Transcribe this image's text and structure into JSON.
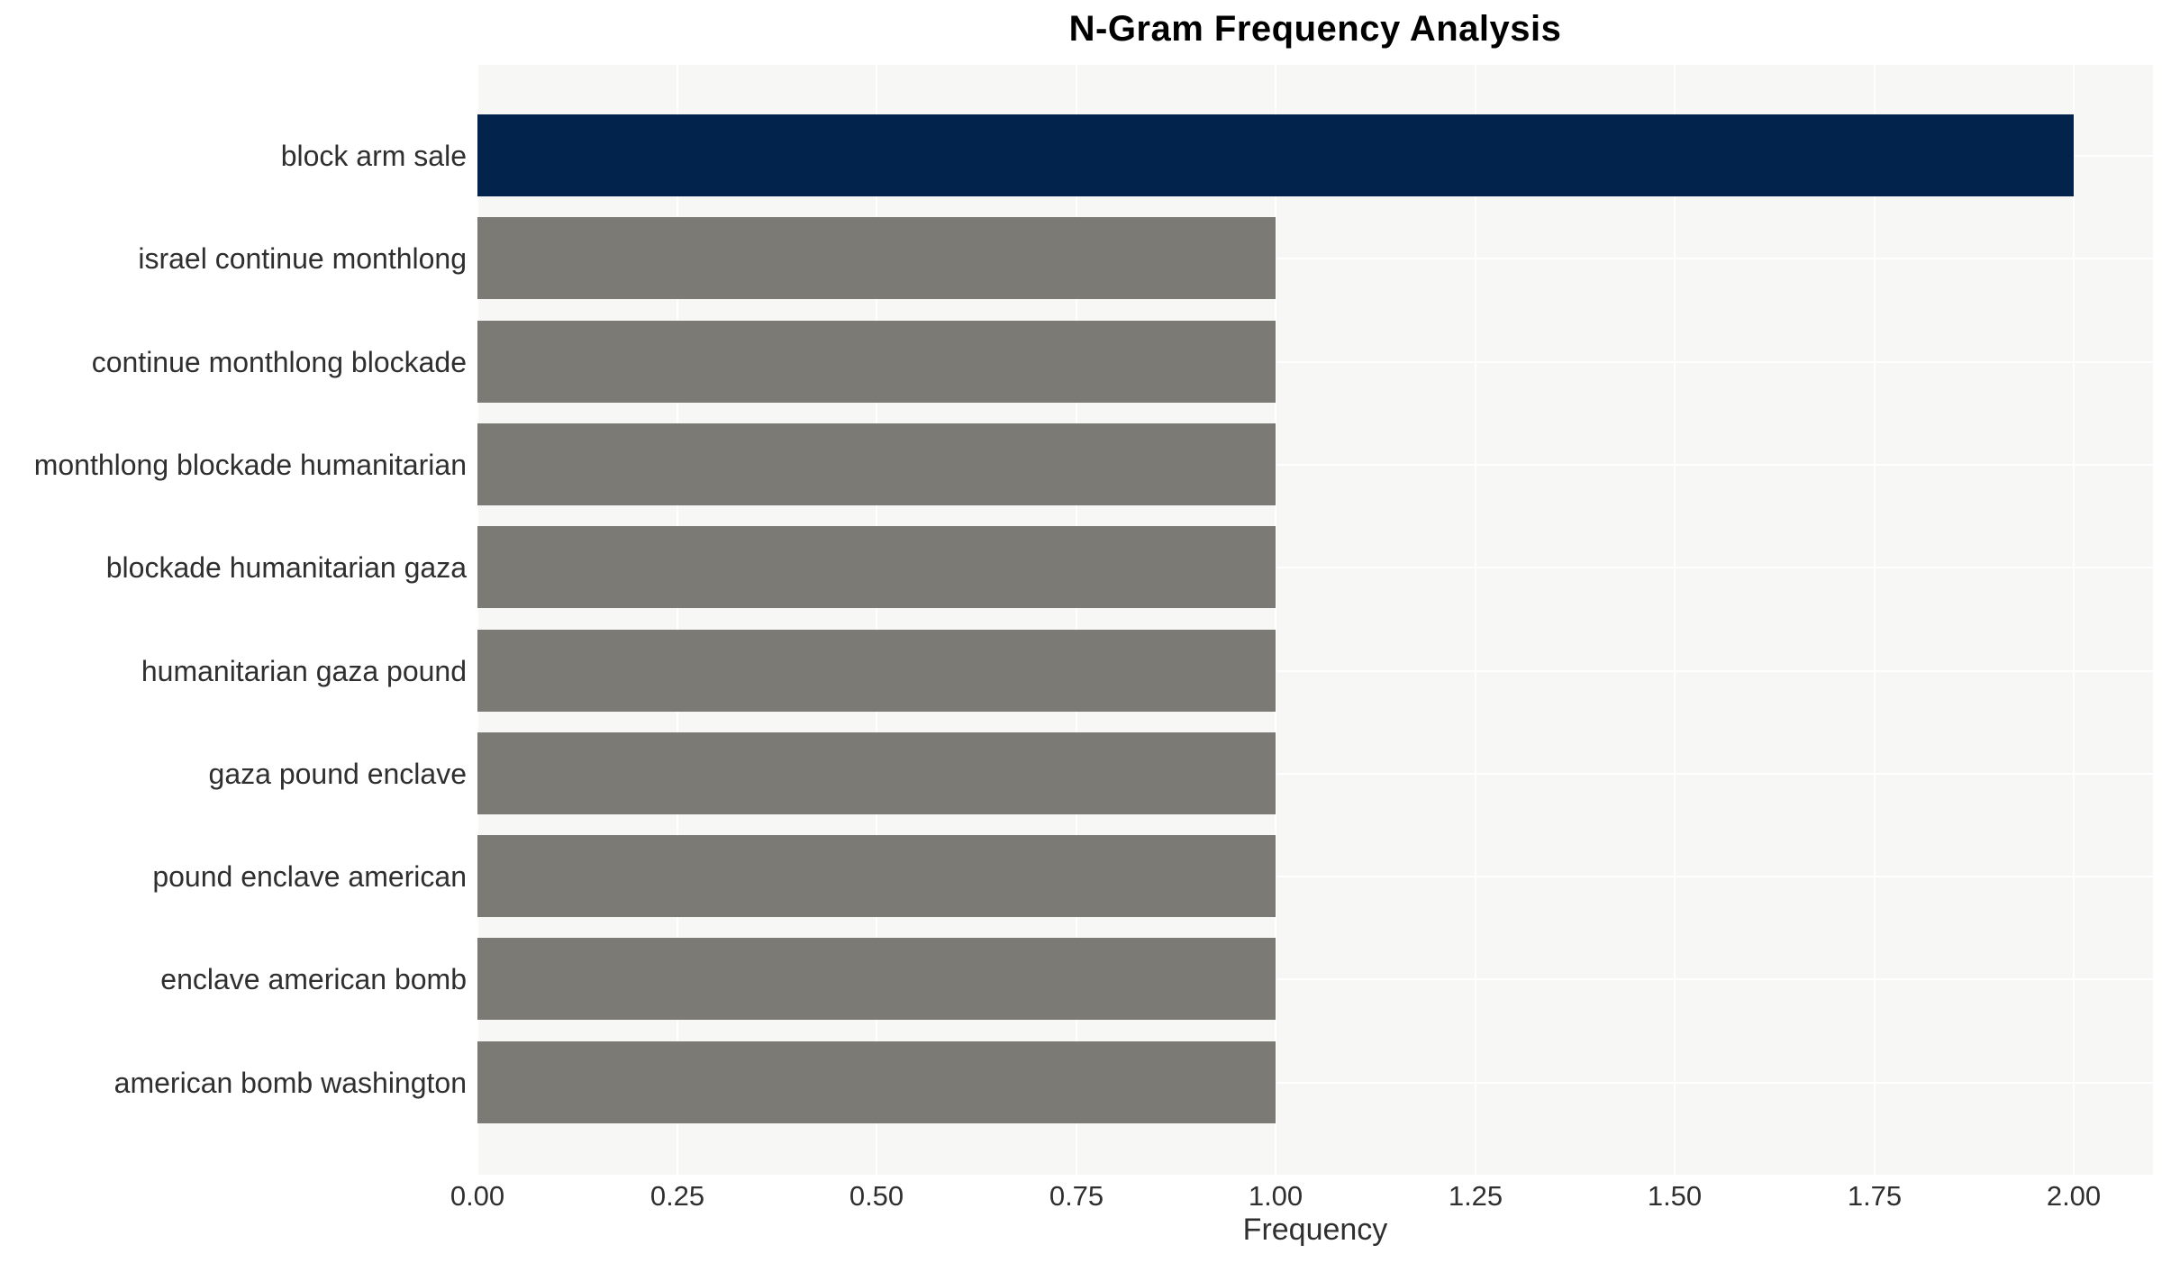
{
  "chart_data": {
    "type": "bar",
    "orientation": "horizontal",
    "title": "N-Gram Frequency Analysis",
    "xlabel": "Frequency",
    "ylabel": "",
    "categories": [
      "block arm sale",
      "israel continue monthlong",
      "continue monthlong blockade",
      "monthlong blockade humanitarian",
      "blockade humanitarian gaza",
      "humanitarian gaza pound",
      "gaza pound enclave",
      "pound enclave american",
      "enclave american bomb",
      "american bomb washington"
    ],
    "values": [
      2,
      1,
      1,
      1,
      1,
      1,
      1,
      1,
      1,
      1
    ],
    "xtick_labels": [
      "0.00",
      "0.25",
      "0.50",
      "0.75",
      "1.00",
      "1.25",
      "1.50",
      "1.75",
      "2.00"
    ],
    "xtick_values": [
      0,
      0.25,
      0.5,
      0.75,
      1,
      1.25,
      1.5,
      1.75,
      2
    ],
    "xlim": [
      0,
      2.1
    ],
    "grid": true,
    "legend": false,
    "colors": {
      "bar_highlight": "#02234c",
      "bar_default": "#7b7a75",
      "plot_background": "#f7f7f6",
      "grid_line": "#ffffff",
      "axis_text": "#2f2f2f",
      "title_text": "#000000"
    },
    "bar_colors": [
      "#02234c",
      "#7b7a75",
      "#7b7a75",
      "#7b7a75",
      "#7b7a75",
      "#7b7a75",
      "#7b7a75",
      "#7b7a75",
      "#7b7a75",
      "#7b7a75"
    ]
  }
}
